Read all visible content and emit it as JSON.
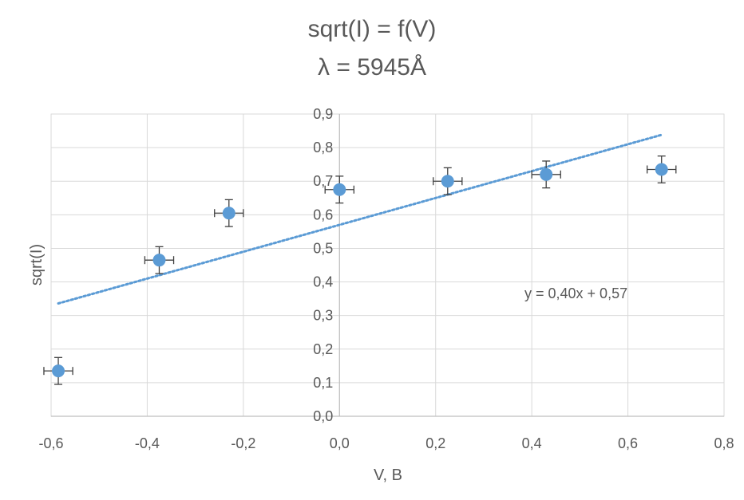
{
  "chart_data": {
    "type": "scatter",
    "title_line1": "sqrt(I) = f(V)",
    "title_line2": "λ = 5945Å",
    "xlabel": "V, B",
    "ylabel": "sqrt(I)",
    "xlim": [
      -0.6,
      0.8
    ],
    "ylim": [
      0.0,
      0.9
    ],
    "x_ticks": [
      "-0,6",
      "-0,4",
      "-0,2",
      "0,0",
      "0,2",
      "0,4",
      "0,6",
      "0,8"
    ],
    "y_ticks": [
      "0,0",
      "0,1",
      "0,2",
      "0,3",
      "0,4",
      "0,5",
      "0,6",
      "0,7",
      "0,8",
      "0,9"
    ],
    "grid": true,
    "points": [
      {
        "x": -0.585,
        "y": 0.135
      },
      {
        "x": -0.375,
        "y": 0.465
      },
      {
        "x": -0.23,
        "y": 0.605
      },
      {
        "x": 0.0,
        "y": 0.675
      },
      {
        "x": 0.225,
        "y": 0.7
      },
      {
        "x": 0.43,
        "y": 0.72
      },
      {
        "x": 0.67,
        "y": 0.735
      }
    ],
    "error_x": 0.03,
    "error_y": 0.04,
    "trendline": {
      "equation": "y = 0,40x + 0,57",
      "slope": 0.4,
      "intercept": 0.57,
      "x_range": [
        -0.585,
        0.67
      ]
    },
    "colors": {
      "marker": "#5b9bd5",
      "trendline": "#5b9bd5",
      "error_bar": "#404040",
      "grid": "#d9d9d9",
      "text": "#595959"
    }
  }
}
